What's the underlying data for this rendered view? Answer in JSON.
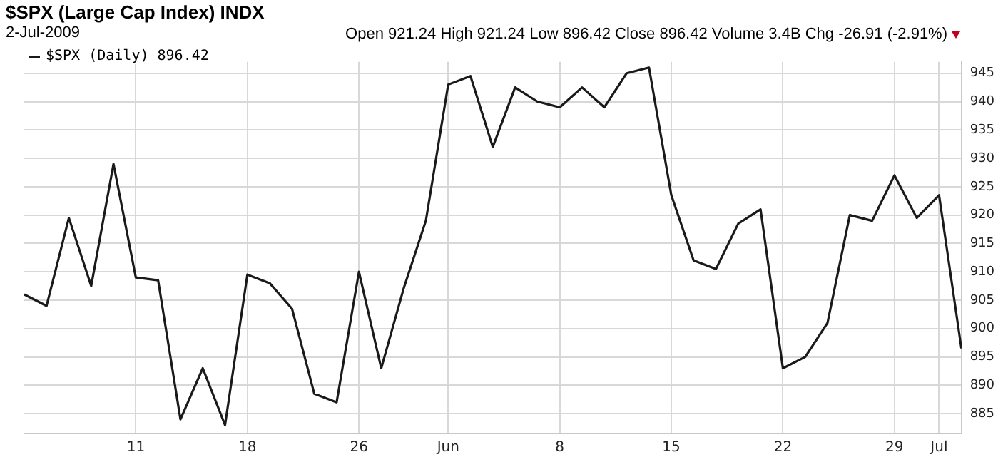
{
  "chart_data": {
    "type": "line",
    "title": "$SPX (Large Cap Index) INDX",
    "subtitle": "2-Jul-2009",
    "annotations": [
      "Open 921.24 High 921.24 Low 896.42 Close 896.42 Volume 3.4B Chg -26.91 (-2.91%)"
    ],
    "categories": [
      null,
      null,
      null,
      null,
      null,
      "11",
      null,
      null,
      null,
      null,
      "18",
      null,
      null,
      null,
      null,
      "26",
      null,
      null,
      null,
      "Jun",
      null,
      null,
      null,
      null,
      "8",
      null,
      null,
      null,
      null,
      "15",
      null,
      null,
      null,
      null,
      "22",
      null,
      null,
      null,
      null,
      "29",
      null,
      "Jul",
      null
    ],
    "series": [
      {
        "name": "$SPX (Daily) 896.42",
        "color": "#1a1a1a",
        "values": [
          906,
          904,
          919.5,
          907.5,
          929,
          909,
          908.5,
          884,
          893,
          883,
          909.5,
          908,
          903.5,
          888.5,
          887,
          910,
          893,
          907,
          919,
          943,
          944.5,
          932,
          942.5,
          940,
          939,
          942.5,
          939,
          945,
          946,
          923.5,
          912,
          910.5,
          918.5,
          921,
          893,
          895,
          901,
          920,
          919,
          927,
          919.5,
          923.5,
          896.5
        ]
      }
    ],
    "ylim": [
      881.5,
      947
    ],
    "yticks": [
      885,
      890,
      895,
      900,
      905,
      910,
      915,
      920,
      925,
      930,
      935,
      940,
      945
    ],
    "grid": true,
    "legend": "top left",
    "line_style": "solid",
    "marker": "none"
  }
}
